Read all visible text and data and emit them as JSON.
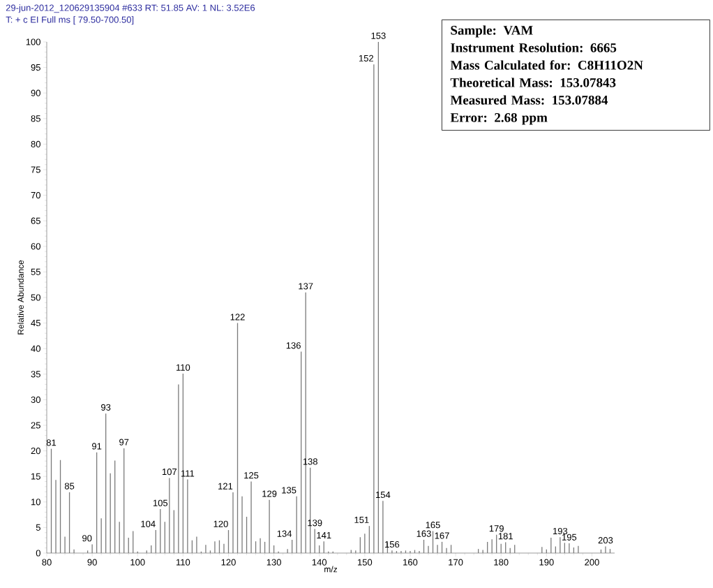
{
  "chart_data": {
    "type": "bar",
    "title": "29-jun-2012_120629135904 #633   RT: 51.85   AV: 1   NL: 3.52E6",
    "subtitle": "T: + c EI Full ms [ 79.50-700.50]",
    "xlabel": "m/z",
    "ylabel": "Relative Abundance",
    "x": [
      81,
      82,
      83,
      84,
      85,
      86,
      89,
      90,
      91,
      92,
      93,
      94,
      95,
      96,
      97,
      98,
      99,
      100,
      102,
      103,
      104,
      105,
      106,
      107,
      108,
      109,
      110,
      111,
      112,
      113,
      114,
      115,
      116,
      117,
      118,
      119,
      120,
      121,
      122,
      123,
      124,
      125,
      126,
      127,
      128,
      129,
      130,
      131,
      133,
      134,
      135,
      136,
      137,
      138,
      139,
      140,
      141,
      142,
      143,
      147,
      148,
      149,
      150,
      151,
      152,
      153,
      154,
      155,
      156,
      157,
      158,
      159,
      160,
      161,
      162,
      163,
      164,
      165,
      166,
      167,
      168,
      169,
      175,
      176,
      177,
      178,
      179,
      180,
      181,
      182,
      183,
      189,
      190,
      191,
      192,
      193,
      194,
      195,
      196,
      197,
      202,
      203,
      204
    ],
    "series": [
      {
        "color": "#7a7a7a",
        "values": [
          20.4,
          14.3,
          18.2,
          3.2,
          11.9,
          0.7,
          0.5,
          1.7,
          19.7,
          6.8,
          27.3,
          15.6,
          18.1,
          6.1,
          20.5,
          3.0,
          4.3,
          0.3,
          0.5,
          1.5,
          4.5,
          8.6,
          6.1,
          14.7,
          8.4,
          33.0,
          35.1,
          14.4,
          2.5,
          3.2,
          0.3,
          1.6,
          0.5,
          2.3,
          2.5,
          1.8,
          4.5,
          11.9,
          45.0,
          11.1,
          7.1,
          14.0,
          2.3,
          2.9,
          2.2,
          10.4,
          1.5,
          0.3,
          0.8,
          2.6,
          11.1,
          39.4,
          51.0,
          16.7,
          4.7,
          1.5,
          2.3,
          0.3,
          0.3,
          0.6,
          0.5,
          3.1,
          3.8,
          5.3,
          95.6,
          100,
          10.2,
          2.1,
          0.5,
          0.4,
          0.4,
          0.5,
          0.4,
          0.6,
          0.4,
          2.6,
          1.4,
          4.3,
          1.6,
          2.2,
          1.0,
          1.6,
          0.8,
          0.6,
          2.2,
          2.7,
          3.6,
          1.8,
          2.1,
          1.0,
          1.6,
          1.2,
          0.7,
          3.0,
          1.3,
          3.1,
          2.0,
          1.9,
          1.1,
          1.4,
          0.7,
          1.3,
          0.8
        ]
      }
    ],
    "xlim": [
      80,
      205
    ],
    "ylim": [
      0,
      100
    ],
    "xticks": [
      80,
      90,
      100,
      110,
      120,
      130,
      140,
      150,
      160,
      170,
      180,
      190,
      200
    ],
    "yticks": [
      0,
      5,
      10,
      15,
      20,
      25,
      30,
      35,
      40,
      45,
      50,
      55,
      60,
      65,
      70,
      75,
      80,
      85,
      90,
      95,
      100
    ],
    "annotations": [
      {
        "text": "81",
        "x": 81,
        "y": 20.4
      },
      {
        "text": "85",
        "x": 85,
        "y": 11.9
      },
      {
        "text": "90",
        "x": 90,
        "y": 1.7
      },
      {
        "text": "91",
        "x": 91,
        "y": 19.7
      },
      {
        "text": "93",
        "x": 93,
        "y": 27.3
      },
      {
        "text": "97",
        "x": 97,
        "y": 20.5
      },
      {
        "text": "104",
        "x": 104,
        "y": 4.5
      },
      {
        "text": "105",
        "x": 105,
        "y": 8.6
      },
      {
        "text": "107",
        "x": 107,
        "y": 14.7
      },
      {
        "text": "110",
        "x": 110,
        "y": 35.1
      },
      {
        "text": "111",
        "x": 111,
        "y": 14.4
      },
      {
        "text": "120",
        "x": 120,
        "y": 4.5
      },
      {
        "text": "121",
        "x": 121,
        "y": 11.9
      },
      {
        "text": "122",
        "x": 122,
        "y": 45.0
      },
      {
        "text": "125",
        "x": 125,
        "y": 14.0
      },
      {
        "text": "129",
        "x": 129,
        "y": 10.4
      },
      {
        "text": "134",
        "x": 134,
        "y": 2.6
      },
      {
        "text": "135",
        "x": 135,
        "y": 11.1
      },
      {
        "text": "136",
        "x": 136,
        "y": 39.4
      },
      {
        "text": "137",
        "x": 137,
        "y": 51.0
      },
      {
        "text": "138",
        "x": 138,
        "y": 16.7
      },
      {
        "text": "139",
        "x": 139,
        "y": 4.7
      },
      {
        "text": "141",
        "x": 141,
        "y": 2.3
      },
      {
        "text": "151",
        "x": 151,
        "y": 5.3
      },
      {
        "text": "152",
        "x": 152,
        "y": 95.6
      },
      {
        "text": "153",
        "x": 153,
        "y": 100
      },
      {
        "text": "154",
        "x": 154,
        "y": 10.2
      },
      {
        "text": "156",
        "x": 156,
        "y": 0.5
      },
      {
        "text": "163",
        "x": 163,
        "y": 2.6
      },
      {
        "text": "165",
        "x": 165,
        "y": 4.3
      },
      {
        "text": "167",
        "x": 167,
        "y": 2.2
      },
      {
        "text": "179",
        "x": 179,
        "y": 3.6
      },
      {
        "text": "181",
        "x": 181,
        "y": 2.1
      },
      {
        "text": "193",
        "x": 193,
        "y": 3.1
      },
      {
        "text": "195",
        "x": 195,
        "y": 1.9
      },
      {
        "text": "203",
        "x": 203,
        "y": 1.3
      },
      "Sample: VAM",
      "Instrument Resolution: 6665",
      "Mass Calculated for: C8H11O2N",
      "Theoretical Mass: 153.07843",
      "Measured Mass: 153.07884",
      "Error: 2.68 ppm"
    ]
  }
}
